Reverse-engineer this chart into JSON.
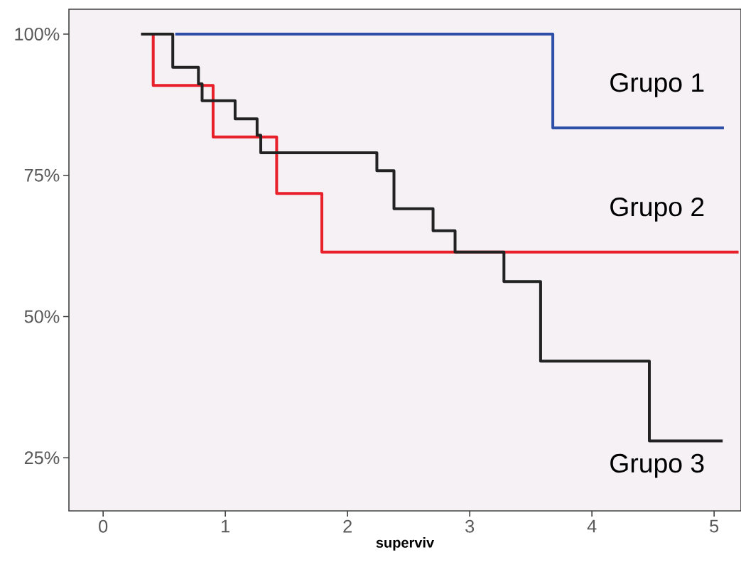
{
  "chart_data": {
    "type": "step",
    "xlabel": "superviv",
    "xlim": [
      -0.28,
      5.22
    ],
    "ylim": [
      15.6,
      104.4
    ],
    "xticks": [
      0,
      1,
      2,
      3,
      4,
      5
    ],
    "yticks": [
      {
        "value": 25,
        "label": "25%"
      },
      {
        "value": 50,
        "label": "50%"
      },
      {
        "value": 75,
        "label": "75%"
      },
      {
        "value": 100,
        "label": "100%"
      }
    ],
    "series": [
      {
        "name": "Grupo 1",
        "color": "#2e4fa8",
        "x": [
          0.59,
          3.68,
          5.08
        ],
        "values": [
          100,
          83.4,
          83.4
        ]
      },
      {
        "name": "Grupo 2",
        "color": "#e8202a",
        "x": [
          0.32,
          0.41,
          0.9,
          1.42,
          1.79,
          5.2
        ],
        "values": [
          100,
          90.9,
          81.8,
          71.8,
          61.4,
          61.4
        ]
      },
      {
        "name": "Grupo 3",
        "color": "#222222",
        "x": [
          0.31,
          0.57,
          0.78,
          0.81,
          1.08,
          1.26,
          1.29,
          2.24,
          2.38,
          2.7,
          2.88,
          3.28,
          3.58,
          4.47,
          5.07
        ],
        "values": [
          100,
          94.1,
          91.2,
          88.2,
          85.0,
          82.1,
          79.0,
          75.8,
          69.1,
          65.2,
          61.4,
          56.2,
          42.1,
          28.0,
          28.0
        ]
      }
    ]
  }
}
